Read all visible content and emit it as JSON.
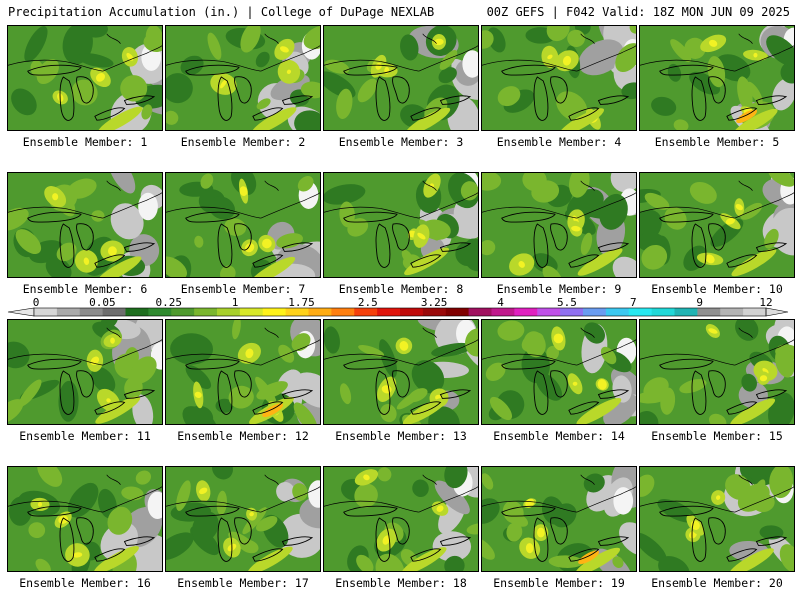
{
  "header": {
    "left": "Precipitation Accumulation (in.) | College of DuPage NEXLAB",
    "right": "00Z GEFS | F042 Valid: 18Z MON JUN 09 2025"
  },
  "members": [
    {
      "label": "Ensemble Member: 1"
    },
    {
      "label": "Ensemble Member: 2"
    },
    {
      "label": "Ensemble Member: 3"
    },
    {
      "label": "Ensemble Member: 4"
    },
    {
      "label": "Ensemble Member: 5"
    },
    {
      "label": "Ensemble Member: 6"
    },
    {
      "label": "Ensemble Member: 7"
    },
    {
      "label": "Ensemble Member: 8"
    },
    {
      "label": "Ensemble Member: 9"
    },
    {
      "label": "Ensemble Member: 10"
    },
    {
      "label": "Ensemble Member: 11"
    },
    {
      "label": "Ensemble Member: 12"
    },
    {
      "label": "Ensemble Member: 13"
    },
    {
      "label": "Ensemble Member: 14"
    },
    {
      "label": "Ensemble Member: 15"
    },
    {
      "label": "Ensemble Member: 16"
    },
    {
      "label": "Ensemble Member: 17"
    },
    {
      "label": "Ensemble Member: 18"
    },
    {
      "label": "Ensemble Member: 19"
    },
    {
      "label": "Ensemble Member: 20"
    }
  ],
  "colorbar": {
    "tick_labels": [
      "0",
      "0.05",
      "0.25",
      "1",
      "1.75",
      "2.5",
      "3.25",
      "4",
      "5.5",
      "7",
      "9",
      "12"
    ],
    "colors": [
      "#d6d6d6",
      "#aaaaaa",
      "#8c8c8c",
      "#6e6e6e",
      "#1e6e1e",
      "#2f8a2f",
      "#4f9a2e",
      "#7ab62e",
      "#a8d02c",
      "#d8e82a",
      "#fff21a",
      "#ffd21a",
      "#ffac14",
      "#ff7f10",
      "#f5400c",
      "#e0140c",
      "#c00a0a",
      "#9a0a0a",
      "#800000",
      "#a01060",
      "#c0188c",
      "#e020c0",
      "#c050e8",
      "#9070f0",
      "#6a9cf0",
      "#3cc8f0",
      "#28e8f0",
      "#20d8d8",
      "#20b4b4",
      "#909090",
      "#b4b4b4",
      "#d2d2d2"
    ]
  },
  "map_colors": {
    "base": "#4f9a2e",
    "dark_green": "#2f7a22",
    "light_green": "#7ab62e",
    "yellow_green": "#b9d82a",
    "yellow": "#f2f224",
    "orange": "#ffb414",
    "gray_light": "#c8c8c8",
    "gray": "#a0a0a0",
    "white": "#f4f4f4"
  }
}
